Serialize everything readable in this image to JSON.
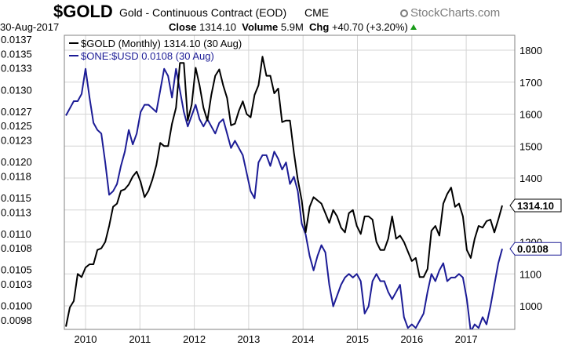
{
  "header": {
    "symbol": "$GOLD",
    "name": "Gold - Continuous Contract (EOD)",
    "exchange": "CME",
    "watermark": "StockCharts.com",
    "date": "30-Aug-2017",
    "close_label": "Close",
    "close_value": "1314.10",
    "volume_label": "Volume",
    "volume_value": "5.9M",
    "chg_label": "Chg",
    "chg_value": "+40.70 (+3.20%)"
  },
  "colors": {
    "gold": "#000000",
    "usd": "#1c1c96",
    "grid": "#d4d4d4",
    "up": "#1a9c1a"
  },
  "chart_data": {
    "type": "line",
    "x_ticks": [
      "2010",
      "2011",
      "2012",
      "2013",
      "2014",
      "2015",
      "2016",
      "2017"
    ],
    "left_axis": {
      "ticks": [
        "0.0137",
        "0.0135",
        "0.0133",
        "0.0130",
        "0.0127",
        "0.0125",
        "0.0123",
        "0.0120",
        "0.0118",
        "0.0115",
        "0.0113",
        "0.0110",
        "0.0108",
        "0.0105",
        "0.0103",
        "0.0100",
        "0.0098"
      ],
      "range": [
        0.0098,
        0.0137
      ]
    },
    "right_axis": {
      "ticks": [
        "1800",
        "1700",
        "1600",
        "1500",
        "1400",
        "1200",
        "1100",
        "1000"
      ],
      "range": [
        950,
        1800
      ]
    },
    "legend": [
      "$GOLD (Monthly) 1314.10 (30 Aug)",
      "$ONE:$USD 0.0108 (30 Aug)"
    ],
    "series": [
      {
        "name": "$GOLD (Monthly) 1314.10 (30 Aug)",
        "axis": "right",
        "last_label": "1314.10",
        "values": [
          935,
          995,
          1015,
          1100,
          1090,
          1120,
          1130,
          1130,
          1175,
          1180,
          1200,
          1250,
          1310,
          1320,
          1360,
          1365,
          1380,
          1405,
          1420,
          1388,
          1340,
          1360,
          1395,
          1440,
          1510,
          1500,
          1500,
          1570,
          1620,
          1760,
          1760,
          1580,
          1630,
          1745,
          1690,
          1620,
          1580,
          1660,
          1720,
          1740,
          1690,
          1650,
          1565,
          1570,
          1610,
          1640,
          1600,
          1590,
          1660,
          1690,
          1780,
          1720,
          1720,
          1665,
          1680,
          1575,
          1580,
          1580,
          1480,
          1395,
          1330,
          1230,
          1310,
          1340,
          1330,
          1320,
          1290,
          1260,
          1300,
          1280,
          1245,
          1230,
          1290,
          1300,
          1250,
          1225,
          1280,
          1280,
          1270,
          1200,
          1175,
          1175,
          1210,
          1280,
          1210,
          1220,
          1200,
          1170,
          1140,
          1150,
          1090,
          1090,
          1115,
          1235,
          1250,
          1220,
          1320,
          1350,
          1370,
          1310,
          1320,
          1280,
          1175,
          1150,
          1210,
          1250,
          1245,
          1265,
          1270,
          1230,
          1270,
          1314
        ]
      },
      {
        "name": "$ONE:$USD 0.0108 (30 Aug)",
        "axis": "left",
        "last_label": "0.0108",
        "values": [
          0.01265,
          0.01275,
          0.01285,
          0.01285,
          0.01295,
          0.0133,
          0.0129,
          0.01255,
          0.01245,
          0.0124,
          0.012,
          0.01155,
          0.0116,
          0.0117,
          0.01195,
          0.01215,
          0.01245,
          0.01225,
          0.0124,
          0.0127,
          0.0128,
          0.0128,
          0.01275,
          0.0127,
          0.013,
          0.0133,
          0.0132,
          0.0129,
          0.0133,
          0.013,
          0.0127,
          0.0125,
          0.01265,
          0.0128,
          0.0126,
          0.0125,
          0.0126,
          0.0125,
          0.0124,
          0.01255,
          0.0126,
          0.0124,
          0.0122,
          0.0123,
          0.0122,
          0.0121,
          0.01185,
          0.0116,
          0.0115,
          0.012,
          0.0121,
          0.0121,
          0.01195,
          0.01215,
          0.01205,
          0.0119,
          0.012,
          0.0117,
          0.0118,
          0.0116,
          0.01115,
          0.011,
          0.0107,
          0.0105,
          0.0107,
          0.01085,
          0.01075,
          0.0103,
          0.01,
          0.01015,
          0.0103,
          0.0104,
          0.01045,
          0.0104,
          0.01045,
          0.01035,
          0.0099,
          0.01,
          0.01035,
          0.01045,
          0.01035,
          0.01035,
          0.0102,
          0.0101,
          0.0102,
          0.0103,
          0.00985,
          0.0097,
          0.00975,
          0.0097,
          0.0098,
          0.0099,
          0.0102,
          0.01045,
          0.01035,
          0.0105,
          0.0106,
          0.01035,
          0.0104,
          0.0104,
          0.01045,
          0.0104,
          0.0101,
          0.00965,
          0.00975,
          0.0097,
          0.00985,
          0.00975,
          0.01,
          0.0103,
          0.0106,
          0.0108
        ]
      }
    ]
  }
}
